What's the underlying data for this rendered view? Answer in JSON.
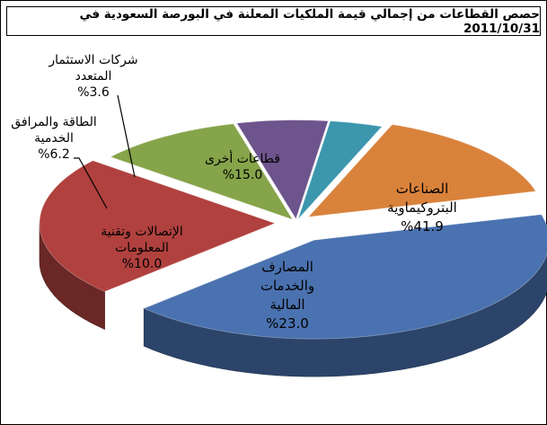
{
  "chart_data": {
    "type": "pie",
    "title": "حصص القطاعات من إجمالي قيمة الملكيات المعلنة في البورصة السعودية في 2011/10/31",
    "slices": [
      {
        "label_lines": [
          "الصناعات",
          "البتروكيماوية"
        ],
        "value_text": "%41.9",
        "value": 41.9,
        "color": "#4a72b0"
      },
      {
        "label_lines": [
          "المصارف",
          "والخدمات",
          "المالية"
        ],
        "value_text": "%23.0",
        "value": 23.0,
        "color": "#b0413e"
      },
      {
        "label_lines": [
          "الإتصالات وتقنية",
          "المعلومات"
        ],
        "value_text": "%10.0",
        "value": 10.0,
        "color": "#86a44a"
      },
      {
        "label_lines": [
          "الطاقة والمرافق",
          "الخدمية"
        ],
        "value_text": "%6.2",
        "value": 6.2,
        "color": "#6e548d"
      },
      {
        "label_lines": [
          "شركات الاستثمار",
          "المتعدد"
        ],
        "value_text": "%3.6",
        "value": 3.6,
        "color": "#3c96ae"
      },
      {
        "label_lines": [
          "قطاعات أخرى"
        ],
        "value_text": "%15.0",
        "value": 15.0,
        "color": "#d9823b"
      }
    ],
    "style": "exploded-3d-pie",
    "legend": "none"
  }
}
